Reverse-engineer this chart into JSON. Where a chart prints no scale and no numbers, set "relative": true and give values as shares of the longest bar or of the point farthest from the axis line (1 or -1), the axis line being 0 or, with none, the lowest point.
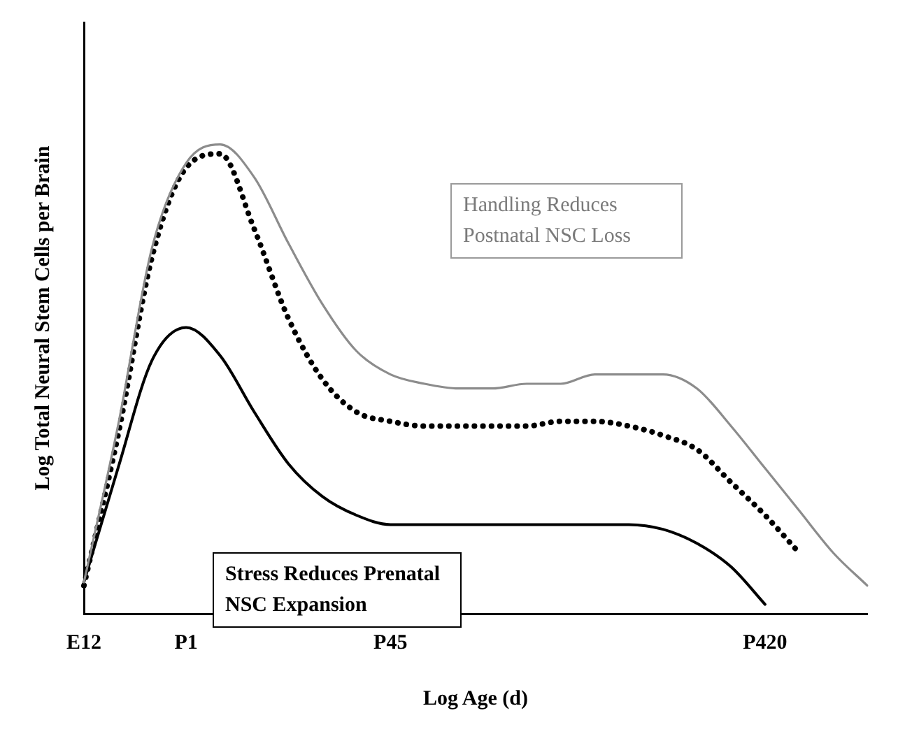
{
  "chart_data": {
    "type": "line",
    "relative": true,
    "xlabel": "Log Age (d)",
    "ylabel": "Log Total Neural Stem Cells per Brain",
    "categories": [
      "E12",
      null,
      null,
      "P1",
      null,
      null,
      null,
      null,
      null,
      "P45",
      null,
      null,
      null,
      null,
      null,
      null,
      null,
      null,
      null,
      null,
      "P420",
      null,
      null,
      null
    ],
    "series": [
      {
        "color": "#8c8c8c",
        "line_style": "solid",
        "values": [
          0.067,
          0.4,
          0.78,
          0.96,
          1.0,
          0.93,
          0.79,
          0.66,
          0.56,
          0.51,
          0.49,
          0.48,
          0.48,
          0.49,
          0.49,
          0.51,
          0.51,
          0.51,
          0.48,
          0.4,
          0.31,
          0.22,
          0.13,
          0.06
        ]
      },
      {
        "color": "#000000",
        "line_style": "dotted",
        "values": [
          0.06,
          0.38,
          0.76,
          0.95,
          0.98,
          0.82,
          0.63,
          0.5,
          0.43,
          0.41,
          0.4,
          0.4,
          0.4,
          0.4,
          0.41,
          0.41,
          0.4,
          0.38,
          0.35,
          0.28,
          0.21,
          0.13,
          null,
          null
        ]
      },
      {
        "color": "#000000",
        "line_style": "solid",
        "values": [
          0.067,
          0.31,
          0.54,
          0.61,
          0.55,
          0.43,
          0.32,
          0.25,
          0.21,
          0.19,
          0.19,
          0.19,
          0.19,
          0.19,
          0.19,
          0.19,
          0.19,
          0.18,
          0.15,
          0.1,
          0.02,
          null,
          null,
          null
        ]
      }
    ],
    "annotations": [
      "Handling Reduces Postnatal NSC Loss",
      "Stress Reduces Prenatal NSC Expansion"
    ],
    "legend": false,
    "grid": false,
    "marker": "none"
  }
}
